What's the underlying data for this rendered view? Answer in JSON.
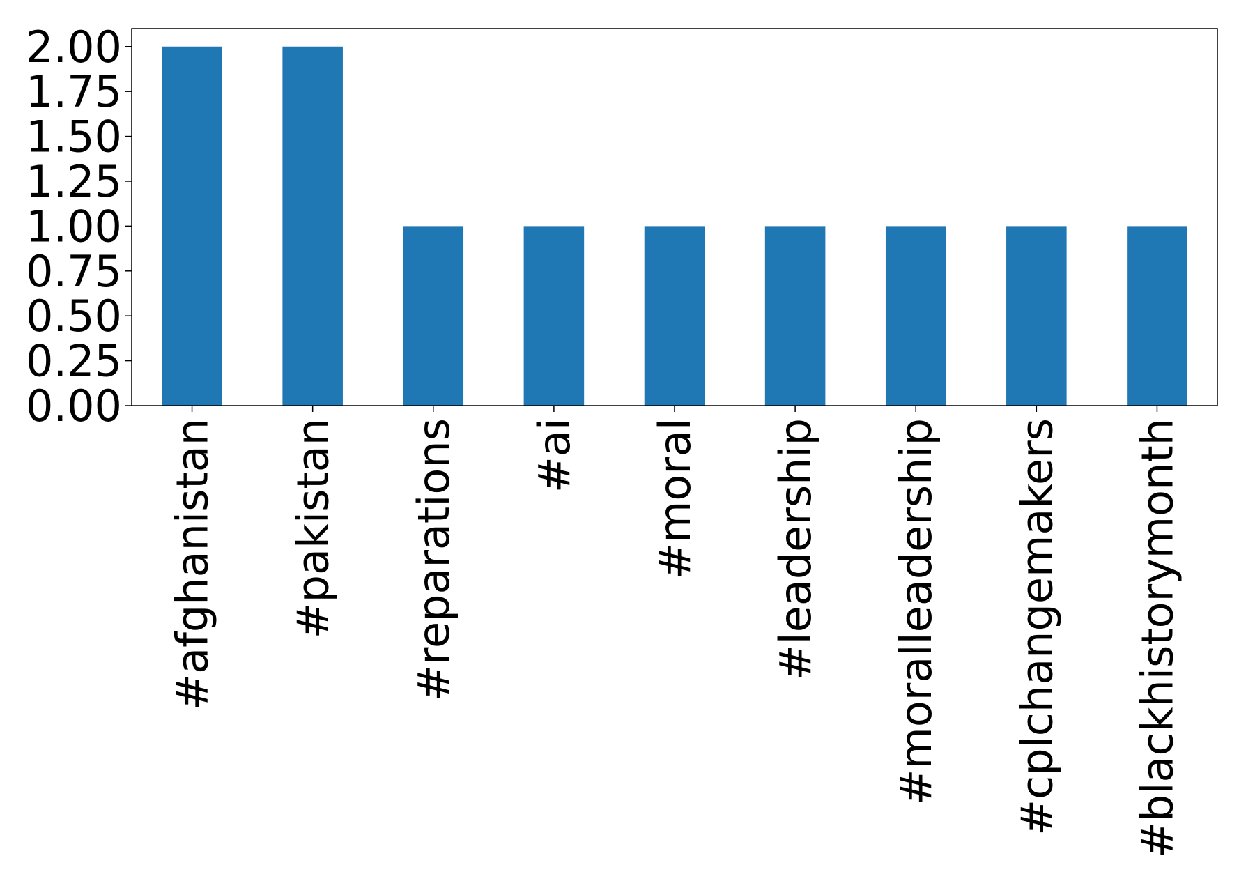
{
  "chart_data": {
    "type": "bar",
    "categories": [
      "#afghanistan",
      "#pakistan",
      "#reparations",
      "#ai",
      "#moral",
      "#leadership",
      "#moralleadership",
      "#cplchangemakers",
      "#blackhistorymonth"
    ],
    "values": [
      2,
      2,
      1,
      1,
      1,
      1,
      1,
      1,
      1
    ],
    "color": "#1f77b4",
    "ylim": [
      0,
      2.1
    ],
    "yticks": [
      {
        "value": 0,
        "label": "0.00"
      },
      {
        "value": 0.25,
        "label": "0.25"
      },
      {
        "value": 0.5,
        "label": "0.50"
      },
      {
        "value": 0.75,
        "label": "0.75"
      },
      {
        "value": 1,
        "label": "1.00"
      },
      {
        "value": 1.25,
        "label": "1.25"
      },
      {
        "value": 1.5,
        "label": "1.50"
      },
      {
        "value": 1.75,
        "label": "1.75"
      },
      {
        "value": 2,
        "label": "2.00"
      }
    ],
    "grid": false
  }
}
